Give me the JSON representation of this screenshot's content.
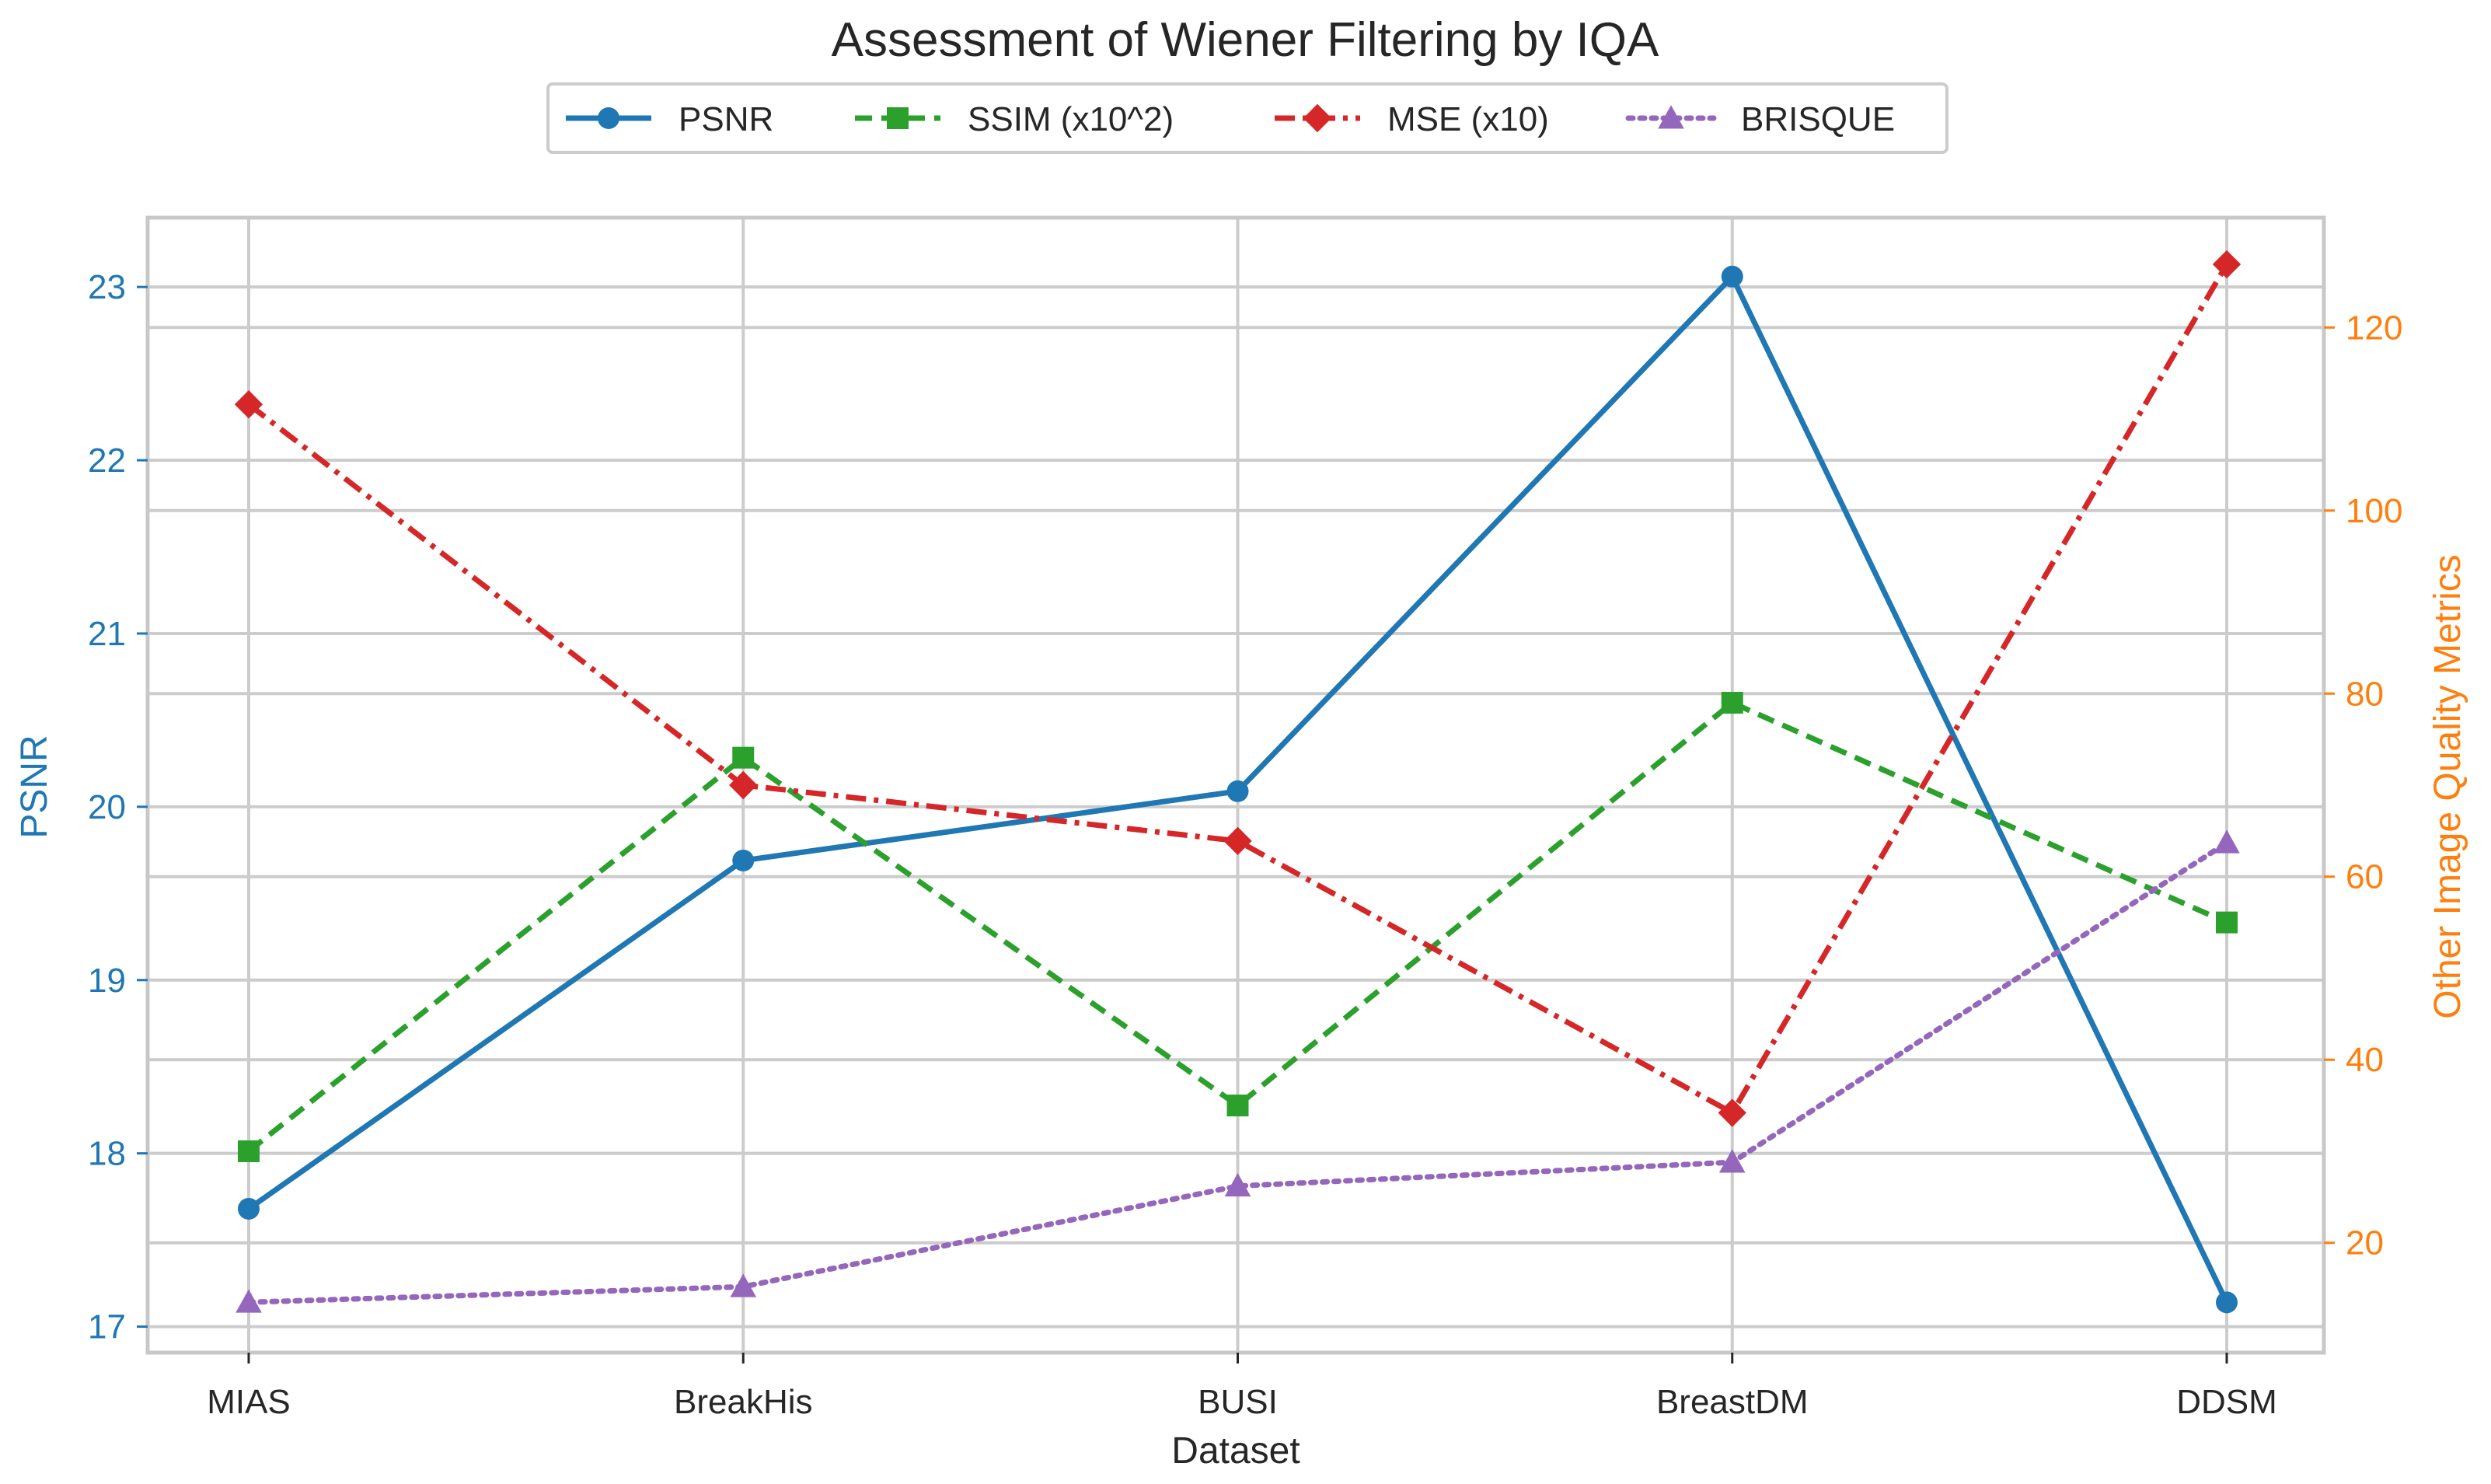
{
  "chart_data": {
    "type": "line",
    "title": "Assessment of Wiener Filtering by IQA",
    "xlabel": "Dataset",
    "ylabel_left": "PSNR",
    "ylabel_right": "Other Image Quality Metrics",
    "categories": [
      "MIAS",
      "BreakHis",
      "BUSI",
      "BreastDM",
      "DDSM"
    ],
    "y_left": {
      "range": [
        16.85,
        23.4
      ],
      "ticks": [
        17,
        18,
        19,
        20,
        21,
        22,
        23
      ],
      "color": "#1f77b4"
    },
    "y_right": {
      "range": [
        8,
        132
      ],
      "ticks": [
        20,
        40,
        60,
        80,
        100,
        120
      ],
      "color": "#ff7f0e"
    },
    "grid": true,
    "legend_position": "top-center",
    "series": [
      {
        "name": "PSNR",
        "axis": "left",
        "values": [
          17.68,
          19.69,
          20.09,
          23.06,
          17.14
        ],
        "color": "#1f77b4",
        "linestyle": "solid",
        "marker": "circle"
      },
      {
        "name": "SSIM (x10^2)",
        "axis": "right",
        "values": [
          30,
          73,
          35,
          79,
          55
        ],
        "color": "#2ca02c",
        "linestyle": "dashed",
        "marker": "square"
      },
      {
        "name": "MSE (x10)",
        "axis": "right",
        "values": [
          111.6,
          70.0,
          63.9,
          34.2,
          126.9
        ],
        "color": "#d62728",
        "linestyle": "dashdot",
        "marker": "diamond"
      },
      {
        "name": "BRISQUE",
        "axis": "right",
        "values": [
          13.5,
          15.2,
          26.2,
          28.8,
          63.7
        ],
        "color": "#9467bd",
        "linestyle": "dotted",
        "marker": "triangle"
      }
    ]
  }
}
